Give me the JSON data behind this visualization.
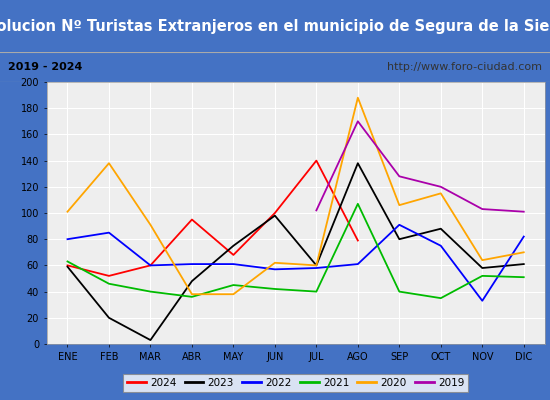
{
  "title": "Evolucion Nº Turistas Extranjeros en el municipio de Segura de la Sierra",
  "subtitle_left": "2019 - 2024",
  "subtitle_right": "http://www.foro-ciudad.com",
  "months": [
    "ENE",
    "FEB",
    "MAR",
    "ABR",
    "MAY",
    "JUN",
    "JUL",
    "AGO",
    "SEP",
    "OCT",
    "NOV",
    "DIC"
  ],
  "series": {
    "2024": {
      "color": "#ff0000",
      "data": [
        60,
        52,
        60,
        95,
        68,
        100,
        140,
        79,
        null,
        null,
        null,
        null
      ]
    },
    "2023": {
      "color": "#000000",
      "data": [
        59,
        20,
        3,
        48,
        75,
        98,
        60,
        138,
        80,
        88,
        58,
        61
      ]
    },
    "2022": {
      "color": "#0000ff",
      "data": [
        80,
        85,
        60,
        61,
        61,
        57,
        58,
        61,
        91,
        75,
        33,
        82
      ]
    },
    "2021": {
      "color": "#00bb00",
      "data": [
        63,
        46,
        40,
        36,
        45,
        42,
        40,
        107,
        40,
        35,
        52,
        51
      ]
    },
    "2020": {
      "color": "#ffa500",
      "data": [
        101,
        138,
        91,
        38,
        38,
        62,
        60,
        188,
        106,
        115,
        64,
        70
      ]
    },
    "2019": {
      "color": "#aa00aa",
      "data": [
        null,
        null,
        null,
        null,
        null,
        null,
        102,
        170,
        128,
        120,
        103,
        101
      ]
    }
  },
  "ylim": [
    0,
    200
  ],
  "yticks": [
    0,
    20,
    40,
    60,
    80,
    100,
    120,
    140,
    160,
    180,
    200
  ],
  "title_bg": "#4472c4",
  "title_color": "#ffffff",
  "subtitle_bg": "#d9d9d9",
  "plot_bg": "#eeeeee",
  "grid_color": "#ffffff",
  "title_fontsize": 10.5,
  "subtitle_fontsize": 8,
  "tick_fontsize": 7,
  "legend_order": [
    "2024",
    "2023",
    "2022",
    "2021",
    "2020",
    "2019"
  ],
  "outer_border": "#4472c4",
  "linewidth": 1.3
}
